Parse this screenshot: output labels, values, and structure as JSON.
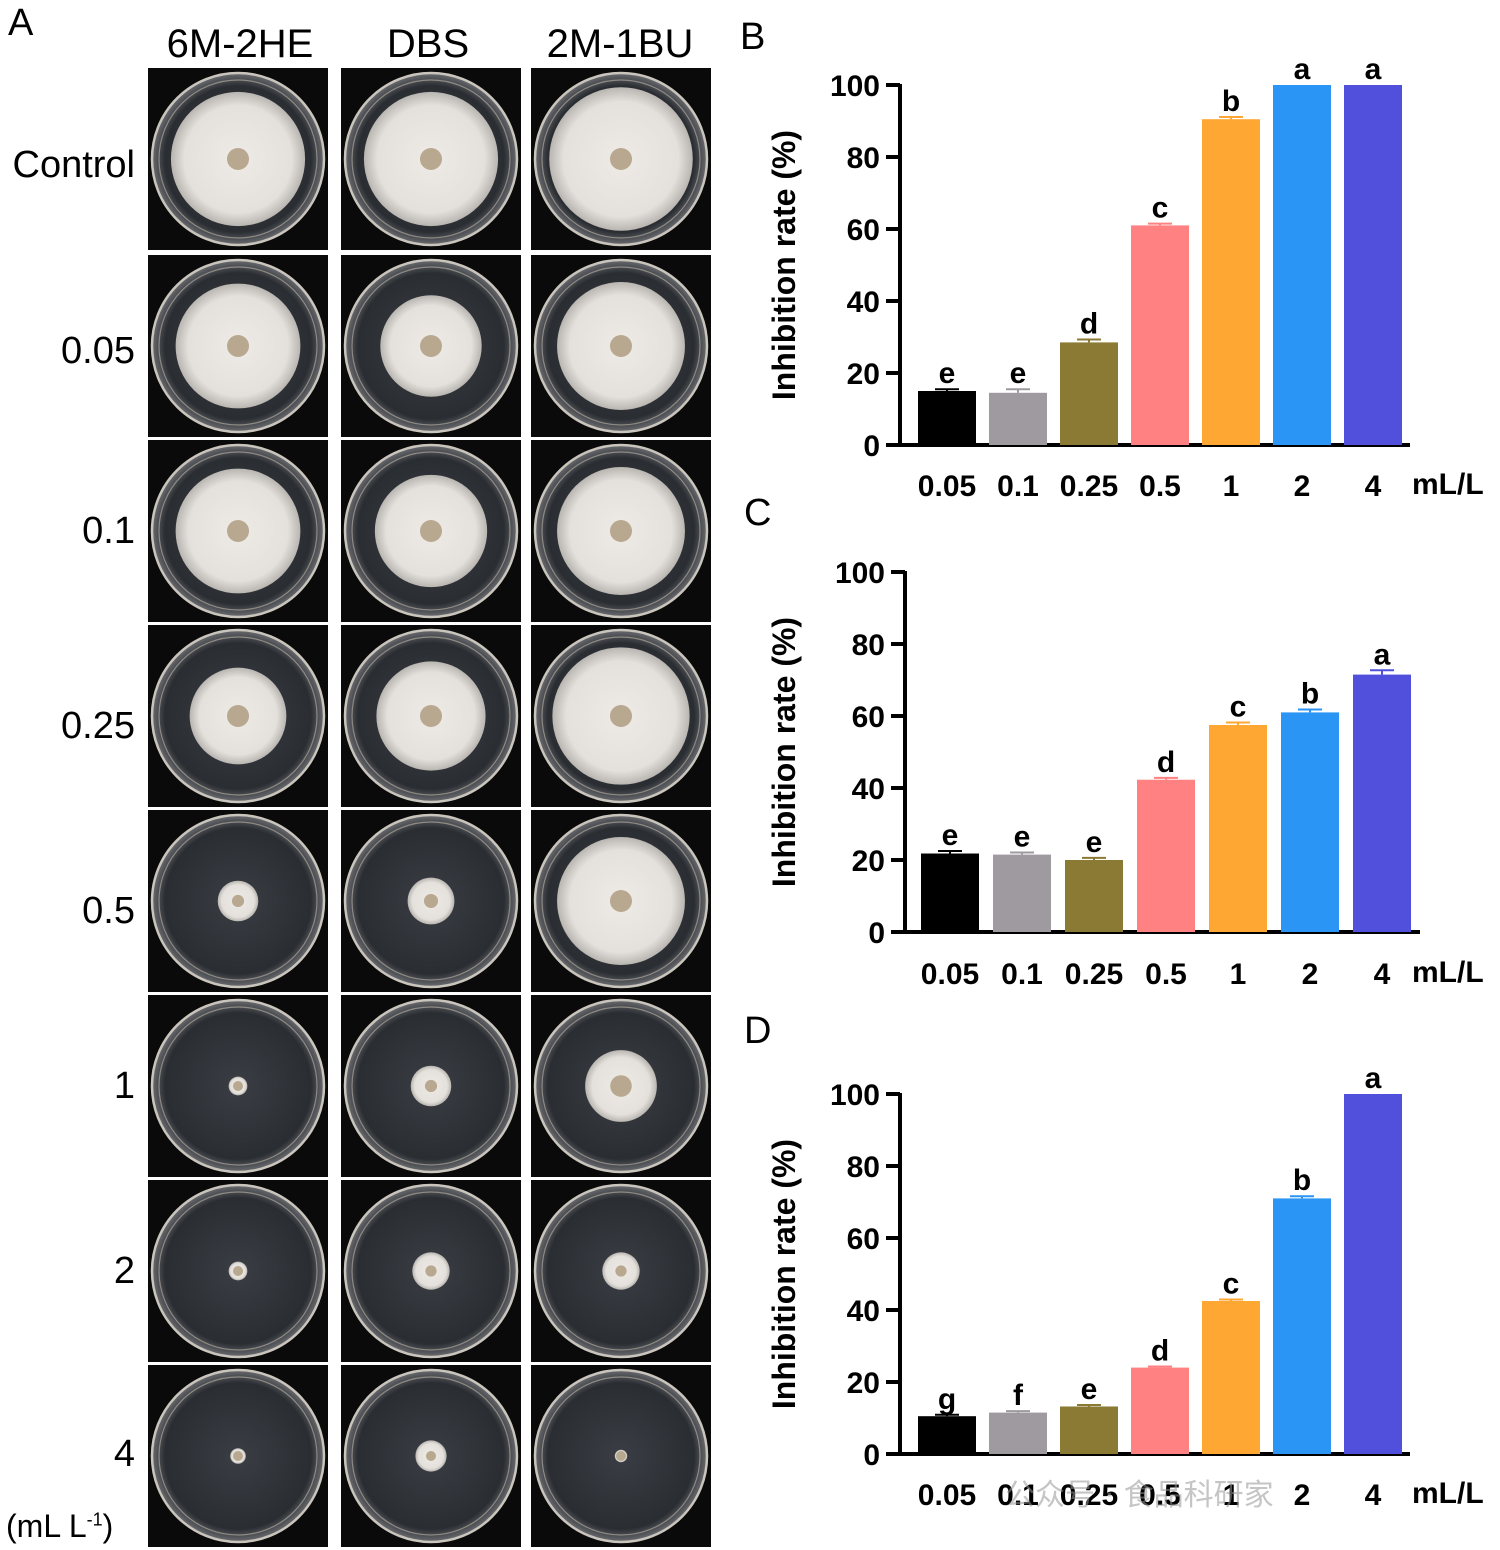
{
  "panel_a": {
    "letter": "A",
    "columns": [
      "6M-2HE",
      "DBS",
      "2M-1BU"
    ],
    "rows": [
      "Control",
      "0.05",
      "0.1",
      "0.25",
      "0.5",
      "1",
      "2",
      "4"
    ],
    "unit_main": "(mL L",
    "unit_sup": "-1",
    "unit_end": ")",
    "colony_size_fraction": [
      [
        0.86,
        0.86,
        0.92
      ],
      [
        0.8,
        0.65,
        0.82
      ],
      [
        0.8,
        0.72,
        0.82
      ],
      [
        0.62,
        0.7,
        0.88
      ],
      [
        0.26,
        0.3,
        0.82
      ],
      [
        0.12,
        0.26,
        0.46
      ],
      [
        0.12,
        0.24,
        0.24
      ],
      [
        0.1,
        0.2,
        0.08
      ]
    ]
  },
  "colors": {
    "bars": [
      "#000000",
      "#9e9aa0",
      "#8b7a34",
      "#ff8181",
      "#ffa733",
      "#2b95f5",
      "#5050dd"
    ],
    "plate_background": "#0a0a0a",
    "colony": "#e4e0dc"
  },
  "chart_data": [
    {
      "type": "bar",
      "panel": "B",
      "categories": [
        "0.05",
        "0.1",
        "0.25",
        "0.5",
        "1",
        "2",
        "4"
      ],
      "values": [
        15,
        14.5,
        28.5,
        61,
        90.5,
        100,
        100
      ],
      "errors": [
        0.5,
        1,
        0.8,
        0.5,
        0.6,
        0,
        0
      ],
      "letters": [
        "e",
        "e",
        "d",
        "c",
        "b",
        "a",
        "a"
      ],
      "ylabel": "Inhibition rate (%)",
      "xunit": "mL/L",
      "ylim": [
        0,
        100
      ],
      "yticks": [
        0,
        20,
        40,
        60,
        80,
        100
      ]
    },
    {
      "type": "bar",
      "panel": "C",
      "categories": [
        "0.05",
        "0.1",
        "0.25",
        "0.5",
        "1",
        "2",
        "4"
      ],
      "values": [
        21.8,
        21.5,
        20,
        42.3,
        57.5,
        61,
        71.5
      ],
      "errors": [
        0.7,
        0.6,
        0.6,
        0.5,
        0.7,
        0.8,
        1.2
      ],
      "letters": [
        "e",
        "e",
        "e",
        "d",
        "c",
        "b",
        "a"
      ],
      "ylabel": "Inhibition rate (%)",
      "xunit": "mL/L",
      "ylim": [
        0,
        100
      ],
      "yticks": [
        0,
        20,
        40,
        60,
        80,
        100
      ]
    },
    {
      "type": "bar",
      "panel": "D",
      "categories": [
        "0.05",
        "0.1",
        "0.25",
        "0.5",
        "1",
        "2",
        "4"
      ],
      "values": [
        10.5,
        11.5,
        13.2,
        24,
        42.5,
        71,
        100
      ],
      "errors": [
        0.4,
        0.4,
        0.4,
        0.3,
        0.4,
        0.6,
        0
      ],
      "letters": [
        "g",
        "f",
        "e",
        "d",
        "c",
        "b",
        "a"
      ],
      "ylabel": "Inhibition rate (%)",
      "xunit": "mL/L",
      "ylim": [
        0,
        100
      ],
      "yticks": [
        0,
        20,
        40,
        60,
        80,
        100
      ]
    }
  ],
  "watermark": "公众号 · 食品科研家"
}
